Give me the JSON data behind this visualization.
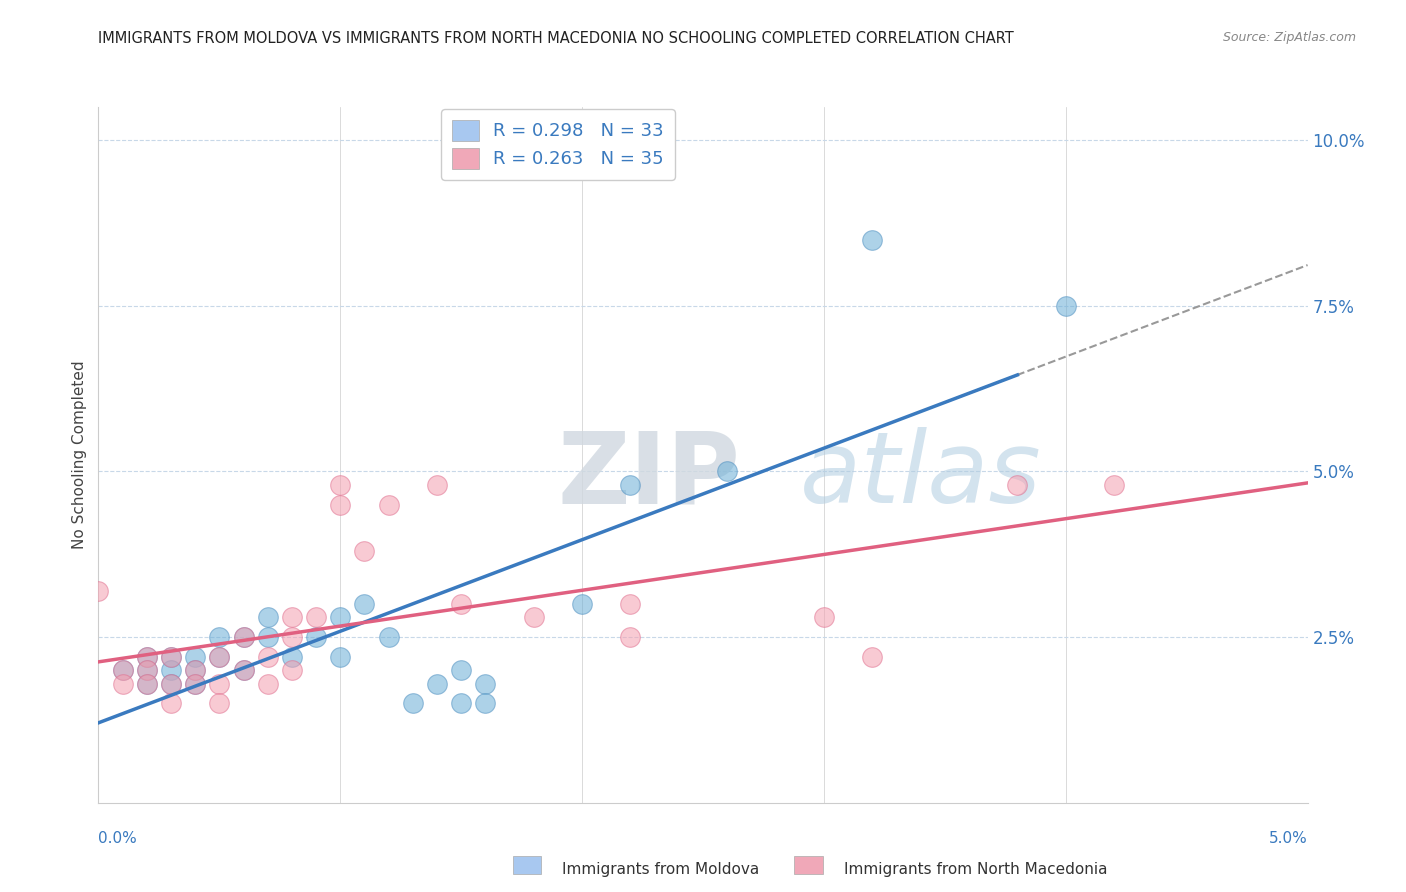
{
  "title": "IMMIGRANTS FROM MOLDOVA VS IMMIGRANTS FROM NORTH MACEDONIA NO SCHOOLING COMPLETED CORRELATION CHART",
  "source": "Source: ZipAtlas.com",
  "ylabel": "No Schooling Completed",
  "ytick_values": [
    0.025,
    0.05,
    0.075,
    0.1
  ],
  "xlim": [
    0.0,
    0.05
  ],
  "ylim": [
    0.0,
    0.105
  ],
  "moldova_color": "#6aaed6",
  "moldova_edge": "#5090c0",
  "macedonia_color": "#f4a0b0",
  "macedonia_edge": "#e07090",
  "moldova_legend_color": "#a8c8f0",
  "macedonia_legend_color": "#f0a8b8",
  "trend_moldova_color": "#3a7abf",
  "trend_macedonia_color": "#e06080",
  "moldova_R": 0.298,
  "moldova_N": 33,
  "macedonia_R": 0.263,
  "macedonia_N": 35,
  "moldova_scatter": [
    [
      0.001,
      0.02
    ],
    [
      0.002,
      0.022
    ],
    [
      0.002,
      0.02
    ],
    [
      0.002,
      0.018
    ],
    [
      0.003,
      0.022
    ],
    [
      0.003,
      0.02
    ],
    [
      0.003,
      0.018
    ],
    [
      0.004,
      0.022
    ],
    [
      0.004,
      0.02
    ],
    [
      0.004,
      0.018
    ],
    [
      0.005,
      0.025
    ],
    [
      0.005,
      0.022
    ],
    [
      0.006,
      0.025
    ],
    [
      0.006,
      0.02
    ],
    [
      0.007,
      0.028
    ],
    [
      0.007,
      0.025
    ],
    [
      0.008,
      0.022
    ],
    [
      0.009,
      0.025
    ],
    [
      0.01,
      0.028
    ],
    [
      0.01,
      0.022
    ],
    [
      0.011,
      0.03
    ],
    [
      0.012,
      0.025
    ],
    [
      0.013,
      0.015
    ],
    [
      0.014,
      0.018
    ],
    [
      0.015,
      0.02
    ],
    [
      0.015,
      0.015
    ],
    [
      0.016,
      0.018
    ],
    [
      0.016,
      0.015
    ],
    [
      0.02,
      0.03
    ],
    [
      0.022,
      0.048
    ],
    [
      0.026,
      0.05
    ],
    [
      0.04,
      0.075
    ],
    [
      0.032,
      0.085
    ]
  ],
  "macedonia_scatter": [
    [
      0.0,
      0.032
    ],
    [
      0.001,
      0.02
    ],
    [
      0.001,
      0.018
    ],
    [
      0.002,
      0.022
    ],
    [
      0.002,
      0.02
    ],
    [
      0.002,
      0.018
    ],
    [
      0.003,
      0.022
    ],
    [
      0.003,
      0.018
    ],
    [
      0.003,
      0.015
    ],
    [
      0.004,
      0.02
    ],
    [
      0.004,
      0.018
    ],
    [
      0.005,
      0.022
    ],
    [
      0.005,
      0.018
    ],
    [
      0.005,
      0.015
    ],
    [
      0.006,
      0.025
    ],
    [
      0.006,
      0.02
    ],
    [
      0.007,
      0.022
    ],
    [
      0.007,
      0.018
    ],
    [
      0.008,
      0.028
    ],
    [
      0.008,
      0.025
    ],
    [
      0.008,
      0.02
    ],
    [
      0.009,
      0.028
    ],
    [
      0.01,
      0.048
    ],
    [
      0.01,
      0.045
    ],
    [
      0.011,
      0.038
    ],
    [
      0.012,
      0.045
    ],
    [
      0.014,
      0.048
    ],
    [
      0.015,
      0.03
    ],
    [
      0.018,
      0.028
    ],
    [
      0.022,
      0.025
    ],
    [
      0.022,
      0.03
    ],
    [
      0.03,
      0.028
    ],
    [
      0.032,
      0.022
    ],
    [
      0.038,
      0.048
    ],
    [
      0.042,
      0.048
    ]
  ],
  "watermark_zip": "ZIP",
  "watermark_atlas": "atlas",
  "background_color": "#ffffff",
  "grid_color": "#c8d8e8",
  "spine_color": "#cccccc"
}
